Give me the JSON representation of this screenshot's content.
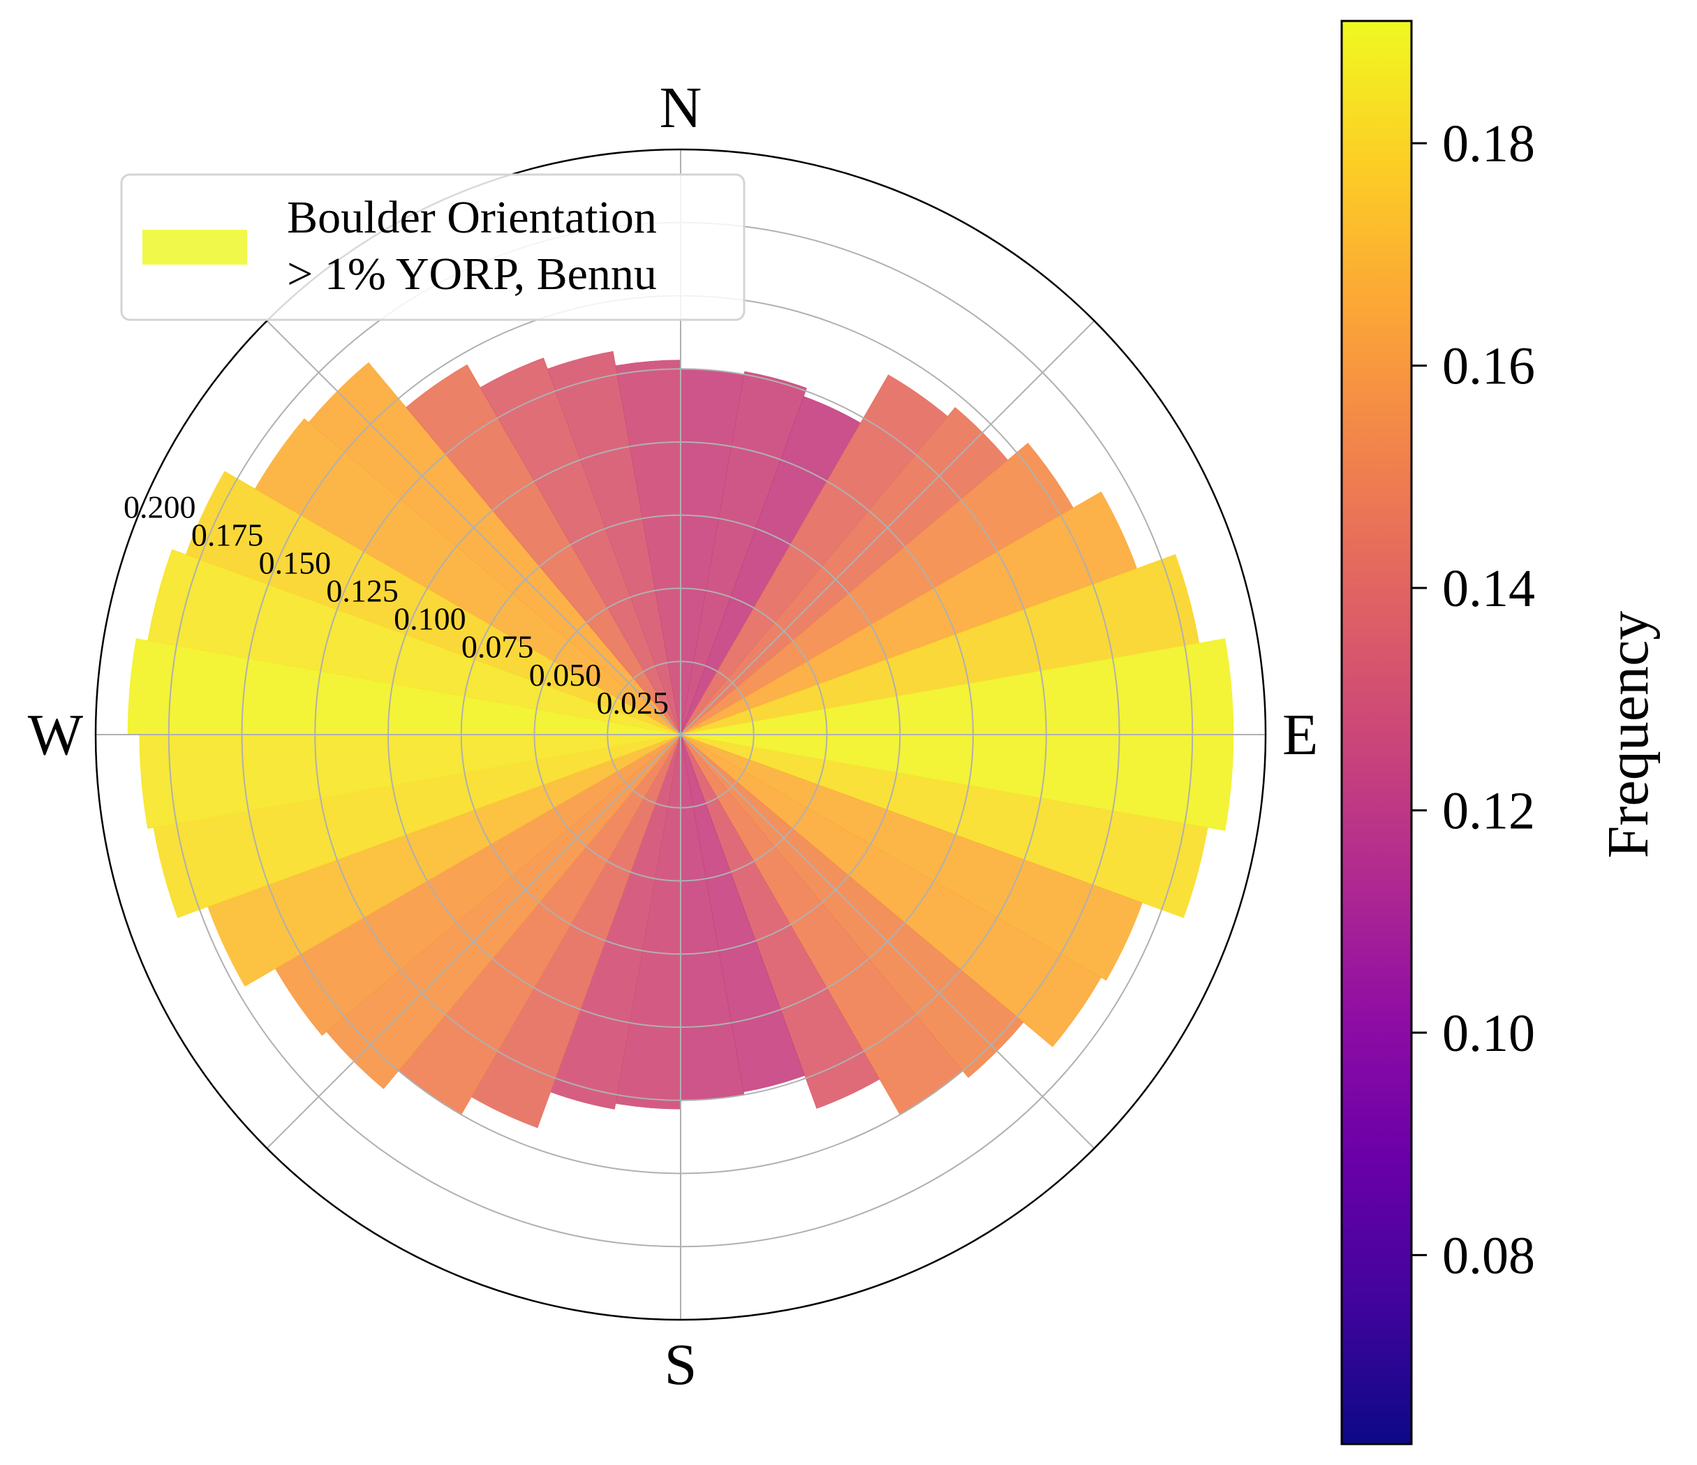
{
  "chart_data": {
    "type": "polar-bar",
    "bin_width_deg": 10,
    "angle_direction": "clockwise-from-north",
    "theta_bins_center_deg": [
      5,
      15,
      25,
      35,
      45,
      55,
      65,
      75,
      85,
      95,
      105,
      115,
      125,
      135,
      145,
      155,
      165,
      175,
      185,
      195,
      205,
      215,
      225,
      235,
      245,
      255,
      265,
      275,
      285,
      295,
      305,
      315,
      325,
      335,
      345,
      355
    ],
    "values": [
      0.125,
      0.126,
      0.123,
      0.142,
      0.146,
      0.155,
      0.166,
      0.18,
      0.189,
      0.189,
      0.183,
      0.168,
      0.166,
      0.153,
      0.15,
      0.136,
      0.124,
      0.125,
      0.128,
      0.13,
      0.143,
      0.15,
      0.158,
      0.16,
      0.172,
      0.183,
      0.185,
      0.189,
      0.185,
      0.18,
      0.168,
      0.166,
      0.146,
      0.137,
      0.133,
      0.128
    ],
    "radial_ticks": [
      "0.025",
      "0.050",
      "0.075",
      "0.100",
      "0.125",
      "0.150",
      "0.175",
      "0.200"
    ],
    "radial_tick_values": [
      0.025,
      0.05,
      0.075,
      0.1,
      0.125,
      0.15,
      0.175,
      0.2
    ],
    "rlim": [
      0,
      0.2
    ],
    "cardinal_labels": {
      "N": "N",
      "E": "E",
      "S": "S",
      "W": "W"
    },
    "legend": {
      "placement": "upper-left",
      "line1": "Boulder Orientation",
      "line2": "> 1% YORP, Bennu",
      "swatch_color": "#f0f94a"
    },
    "colorbar": {
      "label": "Frequency",
      "vmin": 0.063,
      "vmax": 0.191,
      "ticks": [
        "0.08",
        "0.10",
        "0.12",
        "0.14",
        "0.16",
        "0.18"
      ],
      "tick_values": [
        0.08,
        0.1,
        0.12,
        0.14,
        0.16,
        0.18
      ],
      "colormap": "plasma"
    },
    "grid": true
  }
}
